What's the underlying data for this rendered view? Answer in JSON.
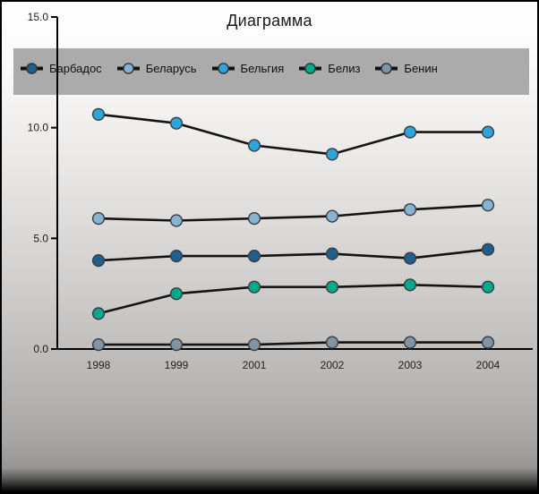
{
  "window": {
    "title": "Диаграмма"
  },
  "legend": {
    "background": "#ababab",
    "items": [
      {
        "label": "Барбадос",
        "color": "#1f5f8f"
      },
      {
        "label": "Беларусь",
        "color": "#85b5d2"
      },
      {
        "label": "Бельгия",
        "color": "#2fa3dc"
      },
      {
        "label": "Белиз",
        "color": "#00a98c"
      },
      {
        "label": "Бенин",
        "color": "#8095a3"
      }
    ]
  },
  "chart_data": {
    "type": "line",
    "title": "Диаграмма",
    "categories": [
      "1998",
      "1999",
      "2001",
      "2002",
      "2003",
      "2004"
    ],
    "series": [
      {
        "name": "Барбадос",
        "color": "#1f5f8f",
        "values": [
          4.0,
          4.2,
          4.2,
          4.3,
          4.1,
          4.5
        ]
      },
      {
        "name": "Беларусь",
        "color": "#85b5d2",
        "values": [
          5.9,
          5.8,
          5.9,
          6.0,
          6.3,
          6.5
        ]
      },
      {
        "name": "Бельгия",
        "color": "#2fa3dc",
        "values": [
          10.6,
          10.2,
          9.2,
          8.8,
          9.8,
          9.8
        ]
      },
      {
        "name": "Белиз",
        "color": "#00a98c",
        "values": [
          1.6,
          2.5,
          2.8,
          2.8,
          2.9,
          2.8
        ]
      },
      {
        "name": "Бенин",
        "color": "#8095a3",
        "values": [
          0.2,
          0.2,
          0.2,
          0.3,
          0.3,
          0.3
        ]
      }
    ],
    "ylim": [
      0,
      15
    ],
    "ytick_values": [
      15,
      10,
      5,
      0
    ],
    "ytick_labels": [
      "15.0",
      "10.0",
      "5.0",
      "0.0"
    ],
    "xlabel": "",
    "ylabel": "",
    "grid": false,
    "legend_position": "top",
    "line_color": "#141414",
    "marker_outline": "#3c3c3c",
    "axis_color": "#000000"
  }
}
